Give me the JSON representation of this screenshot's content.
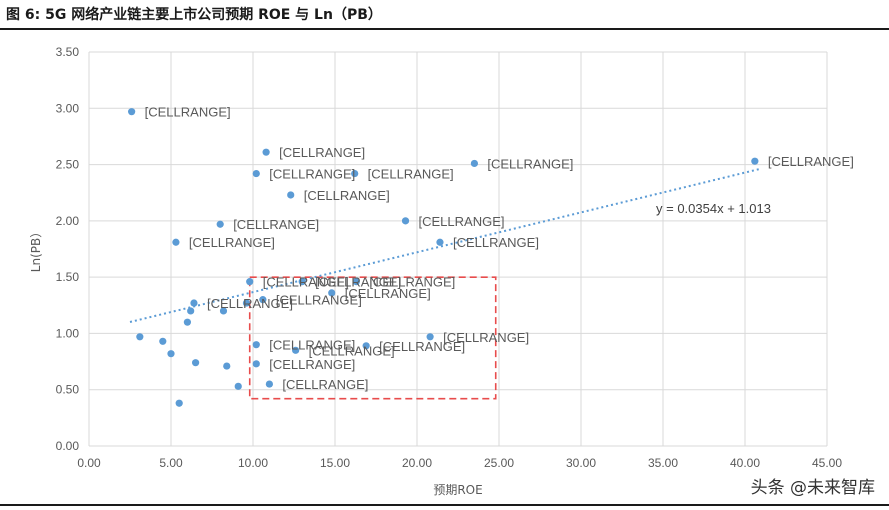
{
  "figure_title": "图 6:  5G 网络产业链主要上市公司预期 ROE 与 Ln（PB）",
  "watermark": "头条 @未来智库",
  "colors": {
    "point": "#5b9bd5",
    "trend": "#5b9bd5",
    "highlight_box": "#e84c4c",
    "grid": "#d9d9d9",
    "text": "#595959"
  },
  "chart_data": {
    "type": "scatter",
    "xlabel": "预期ROE",
    "ylabel": "Ln(PB）",
    "xlim": [
      0,
      45
    ],
    "ylim": [
      0,
      3.5
    ],
    "x_ticks": [
      "0.00",
      "5.00",
      "10.00",
      "15.00",
      "20.00",
      "25.00",
      "30.00",
      "35.00",
      "40.00",
      "45.00"
    ],
    "y_ticks": [
      "0.00",
      "0.50",
      "1.00",
      "1.50",
      "2.00",
      "2.50",
      "3.00",
      "3.50"
    ],
    "grid": true,
    "trendline": {
      "equation": "y = 0.0354x + 1.013",
      "slope": 0.0354,
      "intercept": 1.013,
      "x_range": [
        2.5,
        41.0
      ]
    },
    "highlight_region": {
      "x": [
        9.8,
        24.8
      ],
      "y": [
        0.42,
        1.5
      ]
    },
    "points": [
      {
        "x": 2.6,
        "y": 2.97,
        "label": "[CELLRANGE]"
      },
      {
        "x": 10.8,
        "y": 2.61,
        "label": "[CELLRANGE]"
      },
      {
        "x": 10.2,
        "y": 2.42,
        "label": "[CELLRANGE]"
      },
      {
        "x": 16.2,
        "y": 2.42,
        "label": "[CELLRANGE]"
      },
      {
        "x": 23.5,
        "y": 2.51,
        "label": "[CELLRANGE]"
      },
      {
        "x": 40.6,
        "y": 2.53,
        "label": "[CELLRANGE]"
      },
      {
        "x": 12.3,
        "y": 2.23,
        "label": "[CELLRANGE]"
      },
      {
        "x": 8.0,
        "y": 1.97,
        "label": "[CELLRANGE]"
      },
      {
        "x": 19.3,
        "y": 2.0,
        "label": "[CELLRANGE]"
      },
      {
        "x": 5.3,
        "y": 1.81,
        "label": "[CELLRANGE]"
      },
      {
        "x": 21.4,
        "y": 1.81,
        "label": "[CELLRANGE]"
      },
      {
        "x": 9.8,
        "y": 1.46,
        "label": "[CELLRANGE]"
      },
      {
        "x": 13.0,
        "y": 1.46,
        "label": "[CELLRANGE]"
      },
      {
        "x": 16.3,
        "y": 1.46,
        "label": "[CELLRANGE]"
      },
      {
        "x": 10.6,
        "y": 1.3,
        "label": "[CELLRANGE]"
      },
      {
        "x": 14.8,
        "y": 1.36,
        "label": "[CELLRANGE]"
      },
      {
        "x": 6.4,
        "y": 1.27,
        "label": "[CELLRANGE]"
      },
      {
        "x": 10.2,
        "y": 0.9,
        "label": "[CELLRANGE]"
      },
      {
        "x": 12.6,
        "y": 0.85,
        "label": "[CELLRANGE]"
      },
      {
        "x": 16.9,
        "y": 0.89,
        "label": "[CELLRANGE]"
      },
      {
        "x": 20.8,
        "y": 0.97,
        "label": "[CELLRANGE]"
      },
      {
        "x": 10.2,
        "y": 0.73,
        "label": "[CELLRANGE]"
      },
      {
        "x": 11.0,
        "y": 0.55,
        "label": "[CELLRANGE]"
      },
      {
        "x": 9.6,
        "y": 1.27,
        "label": ""
      },
      {
        "x": 6.2,
        "y": 1.2,
        "label": ""
      },
      {
        "x": 6.0,
        "y": 1.1,
        "label": ""
      },
      {
        "x": 8.2,
        "y": 1.2,
        "label": ""
      },
      {
        "x": 3.1,
        "y": 0.97,
        "label": ""
      },
      {
        "x": 4.5,
        "y": 0.93,
        "label": ""
      },
      {
        "x": 5.0,
        "y": 0.82,
        "label": ""
      },
      {
        "x": 6.5,
        "y": 0.74,
        "label": ""
      },
      {
        "x": 8.4,
        "y": 0.71,
        "label": ""
      },
      {
        "x": 9.1,
        "y": 0.53,
        "label": ""
      },
      {
        "x": 5.5,
        "y": 0.38,
        "label": ""
      }
    ]
  }
}
